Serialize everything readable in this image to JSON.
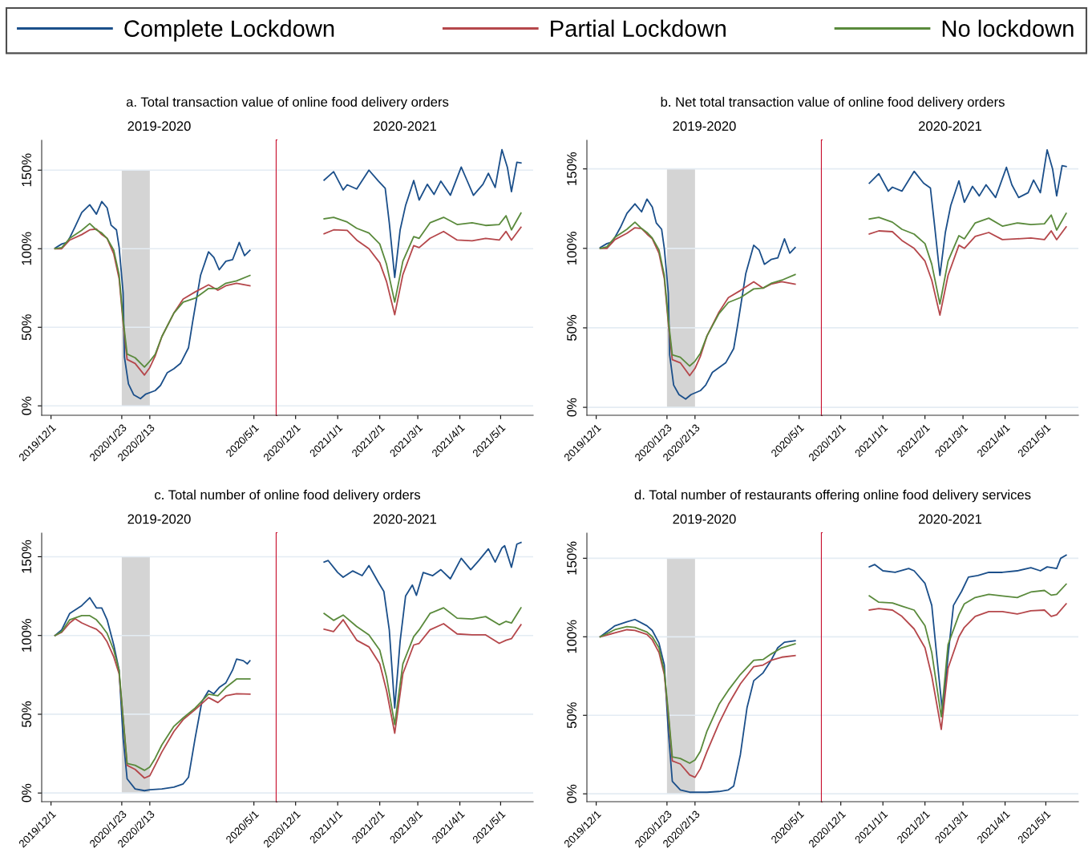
{
  "chart_data": [
    {
      "type": "line",
      "title": "a. Total transaction value of online food delivery orders",
      "subtitle": "2019-2020",
      "legend": "top",
      "grid": "y",
      "xlim": [
        "2019-11-24",
        "2020-05-18"
      ],
      "ylim": [
        -6,
        169
      ],
      "xticks": [
        {
          "value": "2019-12-01",
          "label": "2019/12/1"
        },
        {
          "value": "2020-01-23",
          "label": "2020/1/23"
        },
        {
          "value": "2020-02-13",
          "label": "2020/2/13"
        },
        {
          "value": "2020-05-01",
          "label": "2020/5/1"
        }
      ],
      "yticks": [
        {
          "value": 0,
          "label": "0%"
        },
        {
          "value": 50,
          "label": "50%"
        },
        {
          "value": 100,
          "label": "100%"
        },
        {
          "value": 150,
          "label": "150%"
        }
      ],
      "bands": [
        {
          "axis": "x",
          "from": "2020-01-23",
          "to": "2020-02-13",
          "color": "#d4d4d4"
        }
      ],
      "ref_lines": [
        {
          "axis": "x",
          "value": "2020-05-18",
          "color": "#c8102e"
        }
      ],
      "series": [
        {
          "name": "Complete Lockdown",
          "color": "#1b4f8a",
          "x": [
            "2019-12-04",
            "2019-12-09",
            "2019-12-13",
            "2019-12-15",
            "2019-12-19",
            "2019-12-24",
            "2019-12-30",
            "2020-01-04",
            "2020-01-08",
            "2020-01-12",
            "2020-01-15",
            "2020-01-19",
            "2020-01-21",
            "2020-01-24",
            "2020-01-25",
            "2020-01-28",
            "2020-02-01",
            "2020-02-06",
            "2020-02-10",
            "2020-02-17",
            "2020-02-21",
            "2020-02-26",
            "2020-03-02",
            "2020-03-07",
            "2020-03-13",
            "2020-03-16",
            "2020-03-22",
            "2020-03-28",
            "2020-04-01",
            "2020-04-05",
            "2020-04-10",
            "2020-04-15",
            "2020-04-20",
            "2020-04-24",
            "2020-04-28"
          ],
          "values": [
            100.4,
            103,
            104,
            107,
            114,
            123,
            128,
            122,
            130,
            126,
            115,
            112,
            101,
            72,
            31,
            14,
            7,
            4.6,
            7.5,
            9.7,
            13,
            21,
            23.6,
            27,
            37,
            53,
            83,
            98,
            94.5,
            86.6,
            92,
            93,
            104,
            95.6,
            99
          ]
        },
        {
          "name": "Partial Lockdown",
          "color": "#b5474b",
          "x": [
            "2019-12-04",
            "2019-12-09",
            "2019-12-15",
            "2019-12-24",
            "2019-12-30",
            "2020-01-04",
            "2020-01-08",
            "2020-01-12",
            "2020-01-17",
            "2020-01-21",
            "2020-01-24",
            "2020-01-27",
            "2020-02-02",
            "2020-02-09",
            "2020-02-13",
            "2020-02-17",
            "2020-02-22",
            "2020-03-02",
            "2020-03-09",
            "2020-03-18",
            "2020-03-28",
            "2020-04-04",
            "2020-04-10",
            "2020-04-18",
            "2020-04-28"
          ],
          "values": [
            100,
            100,
            105.5,
            109,
            112,
            112.5,
            109,
            106.6,
            96.7,
            81,
            53,
            29.5,
            27,
            19.6,
            24.4,
            31.7,
            44,
            59,
            68,
            72.5,
            77,
            73.6,
            76.4,
            78,
            76.4
          ]
        },
        {
          "name": "No lockdown",
          "color": "#5a8a3c",
          "x": [
            "2019-12-04",
            "2019-12-09",
            "2019-12-15",
            "2019-12-24",
            "2019-12-30",
            "2020-01-04",
            "2020-01-08",
            "2020-01-12",
            "2020-01-17",
            "2020-01-21",
            "2020-01-24",
            "2020-01-27",
            "2020-02-02",
            "2020-02-09",
            "2020-02-13",
            "2020-02-17",
            "2020-02-22",
            "2020-03-02",
            "2020-03-09",
            "2020-03-18",
            "2020-03-28",
            "2020-04-04",
            "2020-04-10",
            "2020-04-18",
            "2020-04-28"
          ],
          "values": [
            100,
            100.7,
            106.6,
            111.7,
            116,
            112,
            110,
            106.6,
            99,
            83.5,
            55,
            33,
            30.6,
            24.7,
            28.4,
            32.8,
            44,
            59,
            66,
            68.5,
            74.7,
            74.7,
            78,
            79.5,
            83
          ]
        }
      ]
    },
    {
      "type": "line",
      "subtitle": "2020-2021",
      "grid": "y",
      "tick_labels": "x",
      "xlim": [
        "2020-11-17",
        "2021-05-25"
      ],
      "ylim": [
        -6,
        169
      ],
      "xticks": [
        {
          "value": "2020-12-01",
          "label": "2020/12/1"
        },
        {
          "value": "2021-01-01",
          "label": "2021/1/1"
        },
        {
          "value": "2021-02-01",
          "label": "2021/2/1"
        },
        {
          "value": "2021-03-01",
          "label": "2021/3/1"
        },
        {
          "value": "2021-04-01",
          "label": "2021/4/1"
        },
        {
          "value": "2021-05-01",
          "label": "2021/5/1"
        }
      ],
      "yticks": [
        0,
        50,
        100,
        150
      ],
      "series": [
        {
          "color": "#1b4f8a",
          "x": [
            "2020-12-22",
            "2020-12-29",
            "2021-01-05",
            "2021-01-08",
            "2021-01-15",
            "2021-01-24",
            "2021-01-31",
            "2021-02-05",
            "2021-02-08",
            "2021-02-12",
            "2021-02-16",
            "2021-02-20",
            "2021-02-26",
            "2021-03-02",
            "2021-03-08",
            "2021-03-13",
            "2021-03-18",
            "2021-03-25",
            "2021-04-02",
            "2021-04-06",
            "2021-04-11",
            "2021-04-18",
            "2021-04-22",
            "2021-04-27",
            "2021-05-02",
            "2021-05-06",
            "2021-05-09",
            "2021-05-13",
            "2021-05-16"
          ],
          "values": [
            143.6,
            149,
            137.4,
            140.7,
            138,
            150,
            143,
            138.5,
            116.5,
            81.7,
            112,
            127.5,
            143.4,
            131,
            141,
            134.6,
            143,
            134,
            152,
            144,
            134,
            141,
            148,
            139,
            163,
            151.8,
            136.3,
            155,
            154.6
          ]
        },
        {
          "color": "#b5474b",
          "x": [
            "2020-12-22",
            "2020-12-29",
            "2021-01-08",
            "2021-01-15",
            "2021-01-24",
            "2021-02-01",
            "2021-02-06",
            "2021-02-12",
            "2021-02-18",
            "2021-02-26",
            "2021-03-02",
            "2021-03-10",
            "2021-03-20",
            "2021-03-30",
            "2021-04-10",
            "2021-04-20",
            "2021-04-30",
            "2021-05-05",
            "2021-05-09",
            "2021-05-16"
          ],
          "values": [
            109.5,
            112,
            111.7,
            105.5,
            100,
            91,
            79,
            58,
            83.5,
            102,
            100.7,
            106.6,
            111,
            105.5,
            105,
            106.6,
            105.5,
            111,
            105.5,
            113.7
          ]
        },
        {
          "color": "#5a8a3c",
          "x": [
            "2020-12-22",
            "2020-12-29",
            "2021-01-08",
            "2021-01-15",
            "2021-01-24",
            "2021-02-01",
            "2021-02-06",
            "2021-02-12",
            "2021-02-18",
            "2021-02-26",
            "2021-03-02",
            "2021-03-10",
            "2021-03-20",
            "2021-03-30",
            "2021-04-10",
            "2021-04-20",
            "2021-04-30",
            "2021-05-05",
            "2021-05-09",
            "2021-05-16"
          ],
          "values": [
            119,
            120,
            117,
            113,
            110,
            103,
            90,
            66,
            92,
            107.7,
            106.6,
            116.5,
            120,
            115.4,
            116.5,
            114.8,
            115.4,
            121,
            112,
            122.7
          ]
        }
      ]
    },
    {
      "type": "line",
      "title": "b. Net total transaction value of online food delivery orders",
      "subtitle": "2019-2020",
      "grid": "y",
      "xlim": [
        "2019-11-24",
        "2020-05-18"
      ],
      "ylim": [
        -5,
        168
      ],
      "xticks": [
        {
          "value": "2019-12-01",
          "label": "2019/12/1"
        },
        {
          "value": "2020-01-23",
          "label": "2020/1/23"
        },
        {
          "value": "2020-02-13",
          "label": "2020/2/13"
        },
        {
          "value": "2020-05-01",
          "label": "2020/5/1"
        }
      ],
      "yticks": [
        {
          "value": 0,
          "label": "0%"
        },
        {
          "value": 50,
          "label": "50%"
        },
        {
          "value": 100,
          "label": "100%"
        },
        {
          "value": 150,
          "label": "150%"
        }
      ],
      "bands": [
        {
          "axis": "x",
          "from": "2020-01-23",
          "to": "2020-02-13",
          "color": "#d4d4d4"
        }
      ],
      "ref_lines": [
        {
          "axis": "x",
          "value": "2020-05-18",
          "color": "#c8102e"
        }
      ],
      "series": [
        {
          "color": "#1b4f8a",
          "x": [
            "2019-12-04",
            "2019-12-09",
            "2019-12-13",
            "2019-12-15",
            "2019-12-19",
            "2019-12-24",
            "2019-12-30",
            "2020-01-04",
            "2020-01-08",
            "2020-01-12",
            "2020-01-15",
            "2020-01-19",
            "2020-01-21",
            "2020-01-24",
            "2020-01-25",
            "2020-01-28",
            "2020-02-01",
            "2020-02-06",
            "2020-02-10",
            "2020-02-17",
            "2020-02-21",
            "2020-02-26",
            "2020-03-02",
            "2020-03-07",
            "2020-03-13",
            "2020-03-16",
            "2020-03-22",
            "2020-03-28",
            "2020-04-01",
            "2020-04-05",
            "2020-04-10",
            "2020-04-15",
            "2020-04-20",
            "2020-04-24",
            "2020-04-28"
          ],
          "values": [
            100.5,
            103,
            104,
            107,
            113,
            122,
            128,
            123,
            131,
            126,
            116,
            112,
            100,
            72,
            33,
            14,
            8,
            5.2,
            8,
            10.5,
            14,
            22,
            25,
            28,
            37,
            52,
            84,
            102,
            99,
            90,
            93,
            94,
            106,
            97,
            100.5
          ]
        },
        {
          "color": "#b5474b",
          "x": [
            "2019-12-04",
            "2019-12-09",
            "2019-12-15",
            "2019-12-24",
            "2019-12-30",
            "2020-01-04",
            "2020-01-08",
            "2020-01-12",
            "2020-01-17",
            "2020-01-21",
            "2020-01-24",
            "2020-01-27",
            "2020-02-02",
            "2020-02-09",
            "2020-02-13",
            "2020-02-17",
            "2020-02-22",
            "2020-03-02",
            "2020-03-09",
            "2020-03-18",
            "2020-03-28",
            "2020-04-04",
            "2020-04-10",
            "2020-04-18",
            "2020-04-28"
          ],
          "values": [
            100,
            100,
            105.5,
            109.5,
            113,
            112.5,
            109,
            106,
            97,
            81,
            53,
            30,
            28,
            20,
            24.5,
            32,
            45,
            60,
            69,
            73.5,
            79,
            75,
            77.5,
            79,
            77.5
          ]
        },
        {
          "color": "#5a8a3c",
          "x": [
            "2019-12-04",
            "2019-12-09",
            "2019-12-15",
            "2019-12-24",
            "2019-12-30",
            "2020-01-04",
            "2020-01-08",
            "2020-01-12",
            "2020-01-17",
            "2020-01-21",
            "2020-01-24",
            "2020-01-27",
            "2020-02-02",
            "2020-02-09",
            "2020-02-13",
            "2020-02-17",
            "2020-02-22",
            "2020-03-02",
            "2020-03-09",
            "2020-03-18",
            "2020-03-28",
            "2020-04-04",
            "2020-04-10",
            "2020-04-18",
            "2020-04-28"
          ],
          "values": [
            100,
            101,
            107,
            112,
            116.5,
            112.5,
            110,
            106.5,
            99,
            83,
            55,
            33,
            31.5,
            26,
            29,
            34,
            45,
            59,
            66,
            69,
            74.5,
            75,
            78,
            80,
            83.5
          ]
        }
      ]
    },
    {
      "type": "line",
      "subtitle": "2020-2021",
      "grid": "y",
      "tick_labels": "x",
      "xlim": [
        "2020-11-17",
        "2021-05-25"
      ],
      "ylim": [
        -5,
        168
      ],
      "xticks": [
        {
          "value": "2020-12-01",
          "label": "2020/12/1"
        },
        {
          "value": "2021-01-01",
          "label": "2021/1/1"
        },
        {
          "value": "2021-02-01",
          "label": "2021/2/1"
        },
        {
          "value": "2021-03-01",
          "label": "2021/3/1"
        },
        {
          "value": "2021-04-01",
          "label": "2021/4/1"
        },
        {
          "value": "2021-05-01",
          "label": "2021/5/1"
        }
      ],
      "yticks": [
        0,
        50,
        100,
        150
      ],
      "series": [
        {
          "color": "#1b4f8a",
          "x": [
            "2020-12-22",
            "2020-12-29",
            "2021-01-05",
            "2021-01-08",
            "2021-01-15",
            "2021-01-24",
            "2021-01-31",
            "2021-02-05",
            "2021-02-08",
            "2021-02-12",
            "2021-02-16",
            "2021-02-20",
            "2021-02-26",
            "2021-03-02",
            "2021-03-08",
            "2021-03-13",
            "2021-03-18",
            "2021-03-25",
            "2021-04-02",
            "2021-04-06",
            "2021-04-11",
            "2021-04-18",
            "2021-04-22",
            "2021-04-27",
            "2021-05-02",
            "2021-05-06",
            "2021-05-09",
            "2021-05-13",
            "2021-05-16"
          ],
          "values": [
            141,
            147,
            136,
            138.5,
            136,
            148.5,
            141,
            138,
            115,
            83,
            110,
            127,
            142.5,
            129,
            139,
            133,
            140,
            132,
            151,
            140,
            132,
            135,
            143,
            135,
            162,
            150,
            133,
            152,
            151.5
          ]
        },
        {
          "color": "#b5474b",
          "x": [
            "2020-12-22",
            "2020-12-29",
            "2021-01-08",
            "2021-01-15",
            "2021-01-24",
            "2021-02-01",
            "2021-02-06",
            "2021-02-12",
            "2021-02-18",
            "2021-02-26",
            "2021-03-02",
            "2021-03-10",
            "2021-03-20",
            "2021-03-30",
            "2021-04-10",
            "2021-04-20",
            "2021-04-30",
            "2021-05-05",
            "2021-05-09",
            "2021-05-16"
          ],
          "values": [
            109,
            111,
            110.5,
            105,
            100,
            92,
            80,
            58,
            83,
            102,
            100,
            107.5,
            110,
            105.5,
            106,
            106.5,
            105.5,
            111,
            105.5,
            113.5
          ]
        },
        {
          "color": "#5a8a3c",
          "x": [
            "2020-12-22",
            "2020-12-29",
            "2021-01-08",
            "2021-01-15",
            "2021-01-24",
            "2021-02-01",
            "2021-02-06",
            "2021-02-12",
            "2021-02-18",
            "2021-02-26",
            "2021-03-02",
            "2021-03-10",
            "2021-03-20",
            "2021-03-30",
            "2021-04-10",
            "2021-04-20",
            "2021-04-30",
            "2021-05-05",
            "2021-05-09",
            "2021-05-16"
          ],
          "values": [
            118.5,
            119.5,
            116.5,
            112,
            109,
            103,
            90,
            65,
            92,
            108,
            106,
            116,
            119,
            114,
            116,
            115,
            115.5,
            121,
            111.5,
            122
          ]
        }
      ]
    },
    {
      "type": "line",
      "title": "c. Total number of online food delivery orders",
      "subtitle": "2019-2020",
      "grid": "y",
      "xlim": [
        "2019-11-24",
        "2020-05-18"
      ],
      "ylim": [
        -5.5,
        165
      ],
      "xticks": [
        {
          "value": "2019-12-01",
          "label": "2019/12/1"
        },
        {
          "value": "2020-01-23",
          "label": "2020/1/23"
        },
        {
          "value": "2020-02-13",
          "label": "2020/2/13"
        },
        {
          "value": "2020-05-01",
          "label": "2020/5/1"
        }
      ],
      "yticks": [
        {
          "value": 0,
          "label": "0%"
        },
        {
          "value": 50,
          "label": "50%"
        },
        {
          "value": 100,
          "label": "100%"
        },
        {
          "value": 150,
          "label": "150%"
        }
      ],
      "bands": [
        {
          "axis": "x",
          "from": "2020-01-23",
          "to": "2020-02-13",
          "color": "#d4d4d4"
        }
      ],
      "ref_lines": [
        {
          "axis": "x",
          "value": "2020-05-18",
          "color": "#c8102e"
        }
      ],
      "series": [
        {
          "color": "#1b4f8a",
          "x": [
            "2019-12-04",
            "2019-12-09",
            "2019-12-15",
            "2019-12-24",
            "2019-12-30",
            "2020-01-04",
            "2020-01-08",
            "2020-01-12",
            "2020-01-17",
            "2020-01-21",
            "2020-01-24",
            "2020-01-27",
            "2020-02-02",
            "2020-02-09",
            "2020-02-13",
            "2020-02-22",
            "2020-03-02",
            "2020-03-09",
            "2020-03-13",
            "2020-03-18",
            "2020-03-23",
            "2020-03-28",
            "2020-04-01",
            "2020-04-05",
            "2020-04-10",
            "2020-04-15",
            "2020-04-18",
            "2020-04-23",
            "2020-04-26",
            "2020-04-28"
          ],
          "values": [
            100,
            103.6,
            114,
            119,
            124,
            117.5,
            117.5,
            110,
            94,
            78,
            35,
            9,
            2.6,
            1.5,
            2.1,
            2.6,
            3.7,
            5.8,
            10,
            35,
            58,
            65,
            63,
            67,
            70,
            78,
            85,
            84,
            82,
            84
          ]
        },
        {
          "color": "#b5474b",
          "x": [
            "2019-12-04",
            "2019-12-09",
            "2019-12-15",
            "2019-12-19",
            "2019-12-24",
            "2019-12-30",
            "2020-01-04",
            "2020-01-08",
            "2020-01-12",
            "2020-01-17",
            "2020-01-21",
            "2020-01-24",
            "2020-01-27",
            "2020-02-02",
            "2020-02-09",
            "2020-02-13",
            "2020-02-17",
            "2020-02-22",
            "2020-03-02",
            "2020-03-09",
            "2020-03-18",
            "2020-03-28",
            "2020-04-04",
            "2020-04-10",
            "2020-04-18",
            "2020-04-28"
          ],
          "values": [
            100,
            102,
            108,
            110.7,
            108,
            105.7,
            104,
            101,
            96,
            86.4,
            75.7,
            47.7,
            17.6,
            15,
            9.5,
            11,
            17.6,
            26,
            39,
            46.6,
            53,
            60.6,
            57.4,
            61.7,
            63,
            62.8
          ]
        },
        {
          "color": "#5a8a3c",
          "x": [
            "2019-12-04",
            "2019-12-09",
            "2019-12-15",
            "2019-12-24",
            "2019-12-30",
            "2020-01-04",
            "2020-01-08",
            "2020-01-12",
            "2020-01-17",
            "2020-01-21",
            "2020-01-24",
            "2020-01-27",
            "2020-02-02",
            "2020-02-09",
            "2020-02-13",
            "2020-02-17",
            "2020-02-22",
            "2020-03-02",
            "2020-03-09",
            "2020-03-18",
            "2020-03-28",
            "2020-04-04",
            "2020-04-10",
            "2020-04-18",
            "2020-04-28"
          ],
          "values": [
            100,
            102.5,
            110,
            112.6,
            112.6,
            110,
            106,
            101.4,
            90.7,
            77.8,
            47.7,
            18.7,
            17.6,
            14.4,
            16.5,
            22,
            30.5,
            42.3,
            47.7,
            54,
            62.8,
            61.7,
            67,
            72.4,
            72.4
          ]
        }
      ]
    },
    {
      "type": "line",
      "subtitle": "2020-2021",
      "grid": "y",
      "tick_labels": "x",
      "xlim": [
        "2020-11-17",
        "2021-05-25"
      ],
      "ylim": [
        -5.5,
        165
      ],
      "xticks": [
        {
          "value": "2020-12-01",
          "label": "2020/12/1"
        },
        {
          "value": "2021-01-01",
          "label": "2021/1/1"
        },
        {
          "value": "2021-02-01",
          "label": "2021/2/1"
        },
        {
          "value": "2021-03-01",
          "label": "2021/3/1"
        },
        {
          "value": "2021-04-01",
          "label": "2021/4/1"
        },
        {
          "value": "2021-05-01",
          "label": "2021/5/1"
        }
      ],
      "yticks": [
        0,
        50,
        100,
        150
      ],
      "series": [
        {
          "color": "#1b4f8a",
          "x": [
            "2020-12-22",
            "2020-12-25",
            "2021-01-01",
            "2021-01-05",
            "2021-01-12",
            "2021-01-19",
            "2021-01-24",
            "2021-01-31",
            "2021-02-04",
            "2021-02-08",
            "2021-02-12",
            "2021-02-16",
            "2021-02-20",
            "2021-02-25",
            "2021-02-28",
            "2021-03-05",
            "2021-03-12",
            "2021-03-18",
            "2021-03-25",
            "2021-04-02",
            "2021-04-09",
            "2021-04-15",
            "2021-04-22",
            "2021-04-27",
            "2021-05-02",
            "2021-05-04",
            "2021-05-09",
            "2021-05-13",
            "2021-05-16"
          ],
          "values": [
            146.6,
            147.6,
            140,
            137,
            141,
            138,
            144.4,
            133.7,
            128,
            103.6,
            54,
            96.5,
            125,
            132,
            125.5,
            140,
            138,
            141.8,
            136,
            149,
            141.8,
            147.6,
            155,
            146.6,
            155.6,
            157,
            143.3,
            158,
            159
          ]
        },
        {
          "color": "#b5474b",
          "x": [
            "2020-12-22",
            "2020-12-29",
            "2021-01-05",
            "2021-01-15",
            "2021-01-24",
            "2021-02-01",
            "2021-02-06",
            "2021-02-12",
            "2021-02-18",
            "2021-02-26",
            "2021-03-02",
            "2021-03-10",
            "2021-03-20",
            "2021-03-30",
            "2021-04-10",
            "2021-04-20",
            "2021-04-30",
            "2021-05-05",
            "2021-05-09",
            "2021-05-16"
          ],
          "values": [
            104,
            102.5,
            110,
            97,
            92.8,
            82,
            65,
            38,
            75.7,
            94,
            95,
            103.6,
            107.5,
            101,
            100.4,
            100.4,
            95,
            97,
            98,
            106.8
          ]
        },
        {
          "color": "#5a8a3c",
          "x": [
            "2020-12-22",
            "2020-12-29",
            "2021-01-05",
            "2021-01-15",
            "2021-01-24",
            "2021-02-01",
            "2021-02-06",
            "2021-02-12",
            "2021-02-18",
            "2021-02-26",
            "2021-03-02",
            "2021-03-10",
            "2021-03-20",
            "2021-03-30",
            "2021-04-10",
            "2021-04-20",
            "2021-04-30",
            "2021-05-05",
            "2021-05-09",
            "2021-05-16"
          ],
          "values": [
            114,
            109.6,
            113,
            105.7,
            100.4,
            90.7,
            73.5,
            43.4,
            82,
            99.3,
            103.6,
            114,
            117.6,
            111,
            110.5,
            112,
            106.8,
            109,
            107.9,
            117.6
          ]
        }
      ]
    },
    {
      "type": "line",
      "title": "d. Total number of restaurants offering online food delivery services",
      "subtitle": "2019-2020",
      "grid": "y",
      "xlim": [
        "2019-11-24",
        "2020-05-18"
      ],
      "ylim": [
        -5,
        166
      ],
      "xticks": [
        {
          "value": "2019-12-01",
          "label": "2019/12/1"
        },
        {
          "value": "2020-01-23",
          "label": "2020/1/23"
        },
        {
          "value": "2020-02-13",
          "label": "2020/2/13"
        },
        {
          "value": "2020-05-01",
          "label": "2020/5/1"
        }
      ],
      "yticks": [
        {
          "value": 0,
          "label": "0%"
        },
        {
          "value": 50,
          "label": "50%"
        },
        {
          "value": 100,
          "label": "100%"
        },
        {
          "value": 150,
          "label": "150%"
        }
      ],
      "bands": [
        {
          "axis": "x",
          "from": "2020-01-23",
          "to": "2020-02-13",
          "color": "#d4d4d4"
        }
      ],
      "ref_lines": [
        {
          "axis": "x",
          "value": "2020-05-18",
          "color": "#c8102e"
        }
      ],
      "series": [
        {
          "color": "#1b4f8a",
          "x": [
            "2019-12-04",
            "2019-12-15",
            "2019-12-24",
            "2019-12-30",
            "2020-01-08",
            "2020-01-12",
            "2020-01-17",
            "2020-01-21",
            "2020-01-24",
            "2020-01-27",
            "2020-02-02",
            "2020-02-09",
            "2020-02-22",
            "2020-03-02",
            "2020-03-09",
            "2020-03-13",
            "2020-03-18",
            "2020-03-23",
            "2020-03-28",
            "2020-04-04",
            "2020-04-10",
            "2020-04-15",
            "2020-04-20",
            "2020-04-28"
          ],
          "values": [
            100,
            107,
            109.5,
            111,
            107,
            104,
            96,
            82,
            40,
            8,
            2.5,
            1,
            1,
            1.5,
            2.5,
            5,
            25,
            55,
            72,
            77,
            85,
            93,
            96.5,
            97.5
          ]
        },
        {
          "color": "#b5474b",
          "x": [
            "2019-12-04",
            "2019-12-15",
            "2019-12-24",
            "2019-12-30",
            "2020-01-08",
            "2020-01-12",
            "2020-01-17",
            "2020-01-21",
            "2020-01-24",
            "2020-01-27",
            "2020-02-02",
            "2020-02-09",
            "2020-02-13",
            "2020-02-17",
            "2020-02-22",
            "2020-03-02",
            "2020-03-09",
            "2020-03-18",
            "2020-03-28",
            "2020-04-04",
            "2020-04-10",
            "2020-04-18",
            "2020-04-28"
          ],
          "values": [
            100,
            102.5,
            104.5,
            104,
            101.5,
            98,
            90,
            76,
            50,
            21,
            19,
            12,
            10.5,
            16,
            27,
            45,
            57,
            70,
            81,
            82,
            85,
            87,
            88
          ]
        },
        {
          "color": "#5a8a3c",
          "x": [
            "2019-12-04",
            "2019-12-15",
            "2019-12-24",
            "2019-12-30",
            "2020-01-08",
            "2020-01-12",
            "2020-01-17",
            "2020-01-21",
            "2020-01-24",
            "2020-01-27",
            "2020-02-02",
            "2020-02-09",
            "2020-02-13",
            "2020-02-17",
            "2020-02-22",
            "2020-03-02",
            "2020-03-09",
            "2020-03-18",
            "2020-03-28",
            "2020-04-04",
            "2020-04-10",
            "2020-04-18",
            "2020-04-28"
          ],
          "values": [
            100,
            104.5,
            106.5,
            106,
            103,
            100,
            93,
            78,
            52,
            23.5,
            22.5,
            19.5,
            21.5,
            27,
            40,
            57,
            66,
            76,
            85,
            85.5,
            89,
            93,
            95.5
          ]
        }
      ]
    },
    {
      "type": "line",
      "subtitle": "2020-2021",
      "grid": "y",
      "tick_labels": "x",
      "xlim": [
        "2020-11-17",
        "2021-05-25"
      ],
      "ylim": [
        -5,
        166
      ],
      "xticks": [
        {
          "value": "2020-12-01",
          "label": "2020/12/1"
        },
        {
          "value": "2021-01-01",
          "label": "2021/1/1"
        },
        {
          "value": "2021-02-01",
          "label": "2021/2/1"
        },
        {
          "value": "2021-03-01",
          "label": "2021/3/1"
        },
        {
          "value": "2021-04-01",
          "label": "2021/4/1"
        },
        {
          "value": "2021-05-01",
          "label": "2021/5/1"
        }
      ],
      "yticks": [
        0,
        50,
        100,
        150
      ],
      "series": [
        {
          "color": "#1b4f8a",
          "x": [
            "2020-12-22",
            "2020-12-26",
            "2021-01-01",
            "2021-01-10",
            "2021-01-20",
            "2021-01-24",
            "2021-02-01",
            "2021-02-06",
            "2021-02-10",
            "2021-02-14",
            "2021-02-18",
            "2021-02-22",
            "2021-02-28",
            "2021-03-05",
            "2021-03-12",
            "2021-03-20",
            "2021-03-30",
            "2021-04-10",
            "2021-04-20",
            "2021-04-27",
            "2021-05-02",
            "2021-05-09",
            "2021-05-12",
            "2021-05-16"
          ],
          "values": [
            144.5,
            146,
            142,
            141,
            143.5,
            142,
            134,
            120,
            85,
            51,
            88,
            120,
            129,
            138,
            139,
            141,
            141,
            142,
            144,
            142,
            144.5,
            143.5,
            150,
            152
          ]
        },
        {
          "color": "#b5474b",
          "x": [
            "2020-12-22",
            "2020-12-29",
            "2021-01-08",
            "2021-01-15",
            "2021-01-24",
            "2021-02-01",
            "2021-02-06",
            "2021-02-13",
            "2021-02-18",
            "2021-02-26",
            "2021-03-02",
            "2021-03-10",
            "2021-03-20",
            "2021-03-30",
            "2021-04-10",
            "2021-04-20",
            "2021-04-30",
            "2021-05-05",
            "2021-05-09",
            "2021-05-16"
          ],
          "values": [
            117,
            118,
            117,
            113,
            105,
            93,
            75,
            41,
            80,
            100,
            106,
            113,
            116,
            116,
            114.5,
            116.5,
            117,
            113,
            114,
            121
          ]
        },
        {
          "color": "#5a8a3c",
          "x": [
            "2020-12-22",
            "2020-12-29",
            "2021-01-08",
            "2021-01-15",
            "2021-01-24",
            "2021-02-01",
            "2021-02-06",
            "2021-02-13",
            "2021-02-18",
            "2021-02-26",
            "2021-03-02",
            "2021-03-10",
            "2021-03-20",
            "2021-03-30",
            "2021-04-10",
            "2021-04-20",
            "2021-04-30",
            "2021-05-05",
            "2021-05-09",
            "2021-05-16"
          ],
          "values": [
            126,
            122,
            121.5,
            119.5,
            117,
            107,
            90,
            49,
            95,
            114,
            121,
            125,
            127,
            126,
            125,
            128.5,
            129.5,
            126.5,
            127,
            133.5
          ]
        }
      ]
    }
  ]
}
